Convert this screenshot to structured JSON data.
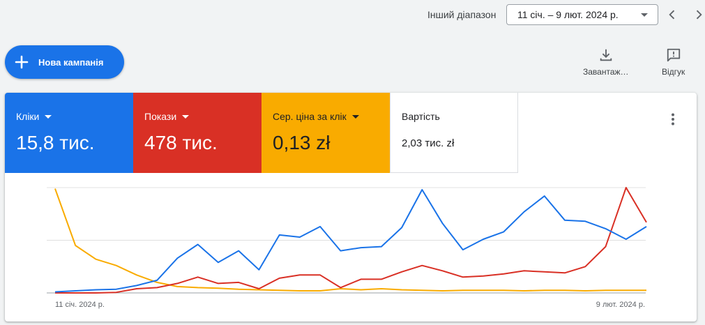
{
  "header": {
    "range_label": "Інший діапазон",
    "range_value": "11 січ. – 9 лют. 2024 р."
  },
  "actions": {
    "new_campaign": "Нова кампанія",
    "download": "Завантаж…",
    "feedback": "Відгук"
  },
  "metrics": [
    {
      "label": "Кліки",
      "value": "15,8 тис.",
      "color": "#1a73e8",
      "dropdown": true
    },
    {
      "label": "Покази",
      "value": "478 тис.",
      "color": "#d93025",
      "dropdown": true
    },
    {
      "label": "Сер. ціна за клік",
      "value": "0,13 zł",
      "color": "#f9ab00",
      "dropdown": true
    },
    {
      "label": "Вартість",
      "value": "2,03 тис. zł",
      "color": "#ffffff",
      "dropdown": false
    }
  ],
  "chart_data": {
    "type": "line",
    "x_start_label": "11 січ. 2024 р.",
    "x_end_label": "9 лют. 2024 р.",
    "grid": true,
    "legend": "none",
    "ylim": [
      0,
      100
    ],
    "series": [
      {
        "color": "#1a73e8",
        "values": [
          1,
          2,
          3,
          3.5,
          7,
          12,
          33,
          46,
          29,
          40,
          22,
          55,
          53,
          63,
          40,
          43,
          44,
          62,
          98,
          66,
          41,
          51,
          58,
          77,
          92,
          69,
          68,
          61,
          51,
          63
        ]
      },
      {
        "color": "#d93025",
        "values": [
          0,
          0,
          0,
          0.5,
          4,
          5,
          9,
          15,
          9,
          10,
          4,
          14,
          17,
          17,
          5,
          13,
          13,
          20,
          26,
          21,
          15,
          16,
          18,
          21,
          20,
          19,
          25,
          44,
          100,
          67
        ]
      },
      {
        "color": "#f9ab00",
        "values": [
          99,
          45,
          32,
          26,
          17,
          10,
          6,
          5,
          4.5,
          3.5,
          3,
          2.5,
          2,
          2,
          4,
          3,
          4,
          3,
          2.5,
          2,
          2.5,
          2.5,
          2.5,
          2,
          2.5,
          2.5,
          2,
          2.5,
          2.5,
          2.5
        ]
      }
    ]
  }
}
